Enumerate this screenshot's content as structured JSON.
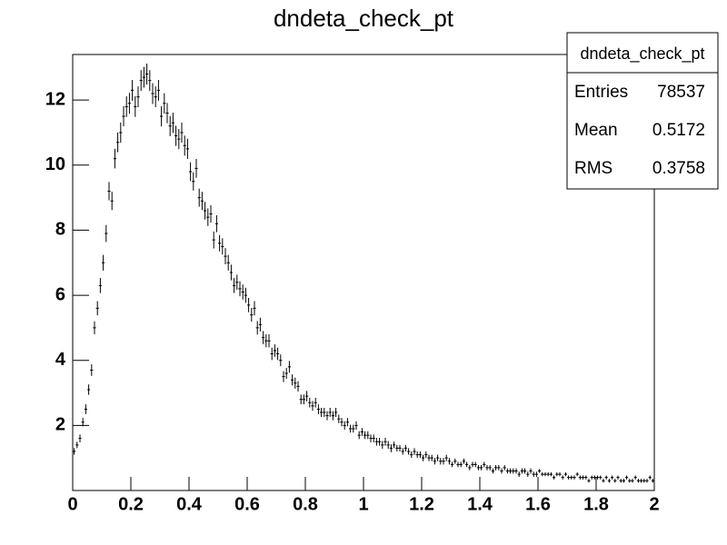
{
  "chart_data": {
    "type": "histogram",
    "title": "dndeta_check_pt",
    "color": "#000000",
    "xlim": [
      0,
      2
    ],
    "ylim": [
      0,
      13.4
    ],
    "xticks": [
      0,
      0.2,
      0.4,
      0.6,
      0.8,
      1,
      1.2,
      1.4,
      1.6,
      1.8,
      2
    ],
    "yticks": [
      2,
      4,
      6,
      8,
      10,
      12
    ],
    "bins": [
      0,
      0.01,
      0.02,
      0.03,
      0.04,
      0.05,
      0.06,
      0.07,
      0.08,
      0.09,
      0.1,
      0.11,
      0.12,
      0.13,
      0.14,
      0.15,
      0.16,
      0.17,
      0.18,
      0.19,
      0.2,
      0.21,
      0.22,
      0.23,
      0.24,
      0.25,
      0.26,
      0.27,
      0.28,
      0.29,
      0.3,
      0.31,
      0.32,
      0.33,
      0.34,
      0.35,
      0.36,
      0.37,
      0.38,
      0.39,
      0.4,
      0.41,
      0.42,
      0.43,
      0.44,
      0.45,
      0.46,
      0.47,
      0.48,
      0.49,
      0.5,
      0.51,
      0.52,
      0.53,
      0.54,
      0.55,
      0.56,
      0.57,
      0.58,
      0.59,
      0.6,
      0.61,
      0.62,
      0.63,
      0.64,
      0.65,
      0.66,
      0.67,
      0.68,
      0.69,
      0.7,
      0.71,
      0.72,
      0.73,
      0.74,
      0.75,
      0.76,
      0.77,
      0.78,
      0.79,
      0.8,
      0.81,
      0.82,
      0.83,
      0.84,
      0.85,
      0.86,
      0.87,
      0.88,
      0.89,
      0.9,
      0.91,
      0.92,
      0.93,
      0.94,
      0.95,
      0.96,
      0.97,
      0.98,
      0.99,
      1,
      1.01,
      1.02,
      1.03,
      1.04,
      1.05,
      1.06,
      1.07,
      1.08,
      1.09,
      1.1,
      1.11,
      1.12,
      1.13,
      1.14,
      1.15,
      1.16,
      1.17,
      1.18,
      1.19,
      1.2,
      1.21,
      1.22,
      1.23,
      1.24,
      1.25,
      1.26,
      1.27,
      1.28,
      1.29,
      1.3,
      1.31,
      1.32,
      1.33,
      1.34,
      1.35,
      1.36,
      1.37,
      1.38,
      1.39,
      1.4,
      1.41,
      1.42,
      1.43,
      1.44,
      1.45,
      1.46,
      1.47,
      1.48,
      1.49,
      1.5,
      1.51,
      1.52,
      1.53,
      1.54,
      1.55,
      1.56,
      1.57,
      1.58,
      1.59,
      1.6,
      1.61,
      1.62,
      1.63,
      1.64,
      1.65,
      1.66,
      1.67,
      1.68,
      1.69,
      1.7,
      1.71,
      1.72,
      1.73,
      1.74,
      1.75,
      1.76,
      1.77,
      1.78,
      1.79,
      1.8,
      1.81,
      1.82,
      1.83,
      1.84,
      1.85,
      1.86,
      1.87,
      1.88,
      1.89,
      1.9,
      1.91,
      1.92,
      1.93,
      1.94,
      1.95,
      1.96,
      1.97,
      1.98,
      1.99,
      2
    ],
    "values": [
      1.2,
      1.4,
      1.6,
      2.1,
      2.5,
      3.1,
      3.7,
      5.0,
      5.6,
      6.3,
      7.0,
      7.9,
      9.2,
      8.9,
      10.2,
      10.7,
      11.0,
      11.5,
      11.8,
      11.9,
      12.3,
      11.8,
      12.1,
      12.6,
      12.7,
      12.8,
      12.6,
      12.2,
      12.1,
      12.3,
      11.5,
      11.9,
      11.6,
      11.2,
      11.3,
      10.9,
      10.8,
      11.0,
      10.6,
      10.5,
      9.8,
      9.5,
      9.9,
      9.0,
      8.9,
      8.6,
      8.4,
      8.5,
      7.7,
      8.2,
      7.6,
      7.5,
      7.2,
      7.0,
      6.7,
      6.3,
      6.4,
      6.2,
      6.1,
      6.0,
      5.7,
      5.4,
      5.6,
      5.0,
      5.1,
      4.7,
      4.6,
      4.6,
      4.2,
      4.3,
      4.2,
      4.0,
      3.5,
      3.6,
      3.8,
      3.4,
      3.3,
      3.2,
      2.8,
      2.8,
      2.9,
      2.7,
      2.6,
      2.7,
      2.5,
      2.4,
      2.4,
      2.3,
      2.4,
      2.3,
      2.4,
      2.2,
      2.1,
      2.0,
      2.1,
      1.9,
      1.9,
      2.0,
      1.7,
      1.8,
      1.7,
      1.7,
      1.6,
      1.6,
      1.5,
      1.5,
      1.4,
      1.5,
      1.4,
      1.3,
      1.4,
      1.3,
      1.3,
      1.2,
      1.3,
      1.2,
      1.1,
      1.2,
      1.1,
      1.1,
      1.0,
      1.1,
      1.0,
      1.0,
      0.9,
      1.0,
      0.9,
      0.9,
      1.0,
      0.9,
      0.8,
      0.9,
      0.8,
      0.8,
      0.9,
      0.8,
      0.7,
      0.8,
      0.8,
      0.7,
      0.7,
      0.8,
      0.7,
      0.7,
      0.6,
      0.7,
      0.7,
      0.6,
      0.7,
      0.6,
      0.6,
      0.6,
      0.6,
      0.5,
      0.6,
      0.6,
      0.5,
      0.6,
      0.5,
      0.5,
      0.6,
      0.5,
      0.5,
      0.5,
      0.5,
      0.4,
      0.5,
      0.5,
      0.4,
      0.5,
      0.4,
      0.4,
      0.4,
      0.5,
      0.4,
      0.4,
      0.4,
      0.3,
      0.4,
      0.4,
      0.4,
      0.4,
      0.3,
      0.4,
      0.3,
      0.4,
      0.3,
      0.4,
      0.3,
      0.3,
      0.4,
      0.3,
      0.3,
      0.4,
      0.3,
      0.3,
      0.3,
      0.3,
      0.4,
      0.3
    ],
    "errors": [
      0.1,
      0.1,
      0.12,
      0.13,
      0.15,
      0.16,
      0.18,
      0.2,
      0.22,
      0.23,
      0.24,
      0.26,
      0.28,
      0.28,
      0.3,
      0.3,
      0.31,
      0.31,
      0.32,
      0.32,
      0.32,
      0.32,
      0.32,
      0.32,
      0.32,
      0.32,
      0.32,
      0.32,
      0.32,
      0.32,
      0.31,
      0.31,
      0.31,
      0.31,
      0.31,
      0.31,
      0.31,
      0.31,
      0.31,
      0.31,
      0.29,
      0.28,
      0.29,
      0.28,
      0.28,
      0.27,
      0.27,
      0.27,
      0.26,
      0.26,
      0.25,
      0.25,
      0.25,
      0.24,
      0.24,
      0.23,
      0.23,
      0.23,
      0.23,
      0.23,
      0.22,
      0.21,
      0.22,
      0.21,
      0.21,
      0.2,
      0.2,
      0.2,
      0.19,
      0.19,
      0.19,
      0.18,
      0.17,
      0.17,
      0.18,
      0.17,
      0.17,
      0.16,
      0.15,
      0.15,
      0.16,
      0.15,
      0.15,
      0.15,
      0.15,
      0.14,
      0.14,
      0.14,
      0.14,
      0.14,
      0.14,
      0.13,
      0.13,
      0.13,
      0.13,
      0.12,
      0.12,
      0.13,
      0.12,
      0.12,
      0.12,
      0.12,
      0.12,
      0.12,
      0.12,
      0.12,
      0.12,
      0.12,
      0.12,
      0.12,
      0.1,
      0.1,
      0.1,
      0.1,
      0.1,
      0.1,
      0.1,
      0.1,
      0.1,
      0.1,
      0.1,
      0.1,
      0.1,
      0.1,
      0.1,
      0.1,
      0.1,
      0.1,
      0.1,
      0.1,
      0.08,
      0.08,
      0.08,
      0.08,
      0.08,
      0.08,
      0.08,
      0.08,
      0.08,
      0.08,
      0.08,
      0.08,
      0.08,
      0.08,
      0.08,
      0.08,
      0.08,
      0.08,
      0.08,
      0.08,
      0.08,
      0.08,
      0.08,
      0.08,
      0.08,
      0.08,
      0.08,
      0.08,
      0.08,
      0.08,
      0.06,
      0.06,
      0.06,
      0.06,
      0.06,
      0.06,
      0.06,
      0.06,
      0.06,
      0.06,
      0.06,
      0.06,
      0.06,
      0.06,
      0.06,
      0.06,
      0.06,
      0.06,
      0.06,
      0.06,
      0.06,
      0.06,
      0.06,
      0.06,
      0.06,
      0.06,
      0.06,
      0.06,
      0.06,
      0.06,
      0.06,
      0.06,
      0.06,
      0.06,
      0.06,
      0.06,
      0.06,
      0.06,
      0.06,
      0.06
    ],
    "stats": {
      "title": "dndeta_check_pt",
      "rows": [
        {
          "label": "Entries",
          "value": 78537
        },
        {
          "label": "Mean",
          "value": 0.5172
        },
        {
          "label": "RMS",
          "value": 0.3758
        }
      ]
    }
  }
}
